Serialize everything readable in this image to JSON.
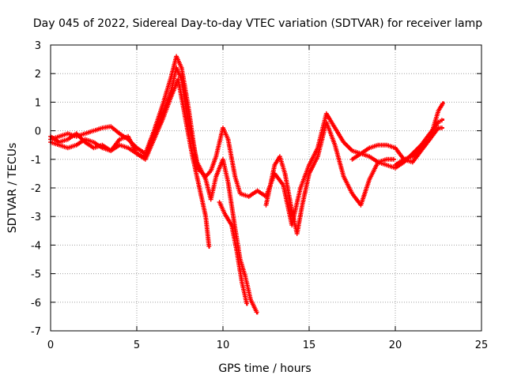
{
  "chart_data": {
    "type": "line",
    "title": "Day 045 of 2022, Sidereal Day-to-day VTEC variation (SDTVAR) for receiver lamp",
    "xlabel": "GPS time / hours",
    "ylabel": "SDTVAR / TECUs",
    "xlim": [
      0,
      25
    ],
    "ylim": [
      -7,
      3
    ],
    "xticks": [
      "0",
      "5",
      "10",
      "15",
      "20",
      "25"
    ],
    "yticks": [
      "3",
      "2",
      "1",
      "0",
      "-1",
      "-2",
      "-3",
      "-4",
      "-5",
      "-6",
      "-7"
    ],
    "grid": true,
    "marker": "plus",
    "color": "#ff0000",
    "series": [
      {
        "x": [
          0,
          0.5,
          1,
          1.5,
          2,
          2.5,
          3,
          3.5,
          4,
          4.5,
          5,
          5.5,
          6,
          6.5,
          7,
          7.3,
          7.6,
          8,
          8.5,
          9,
          9.3,
          9.6,
          10,
          10.3,
          10.7,
          11,
          11.5,
          12,
          12.5,
          13,
          13.5,
          14,
          14.5,
          15,
          15.5,
          16,
          16.5,
          17,
          17.5,
          18,
          18.5,
          19,
          19.5,
          20,
          20.5,
          21,
          21.5,
          22,
          22.5,
          22.8
        ],
        "y": [
          -0.3,
          -0.2,
          -0.1,
          -0.2,
          -0.1,
          0,
          0.1,
          0.15,
          -0.1,
          -0.3,
          -0.6,
          -0.8,
          0,
          0.9,
          1.9,
          2.6,
          2.2,
          0.8,
          -1.3,
          -1.6,
          -1.4,
          -0.9,
          0.1,
          -0.3,
          -1.6,
          -2.2,
          -2.3,
          -2.1,
          -2.3,
          -1.5,
          -1.9,
          -3.3,
          -2.0,
          -1.2,
          -0.6,
          0.6,
          0.1,
          -0.4,
          -0.7,
          -0.8,
          -0.9,
          -1.1,
          -1.2,
          -1.3,
          -1.1,
          -0.8,
          -0.5,
          -0.1,
          0.3,
          0.4
        ]
      },
      {
        "x": [
          0,
          0.5,
          1,
          1.5,
          2,
          2.5,
          3,
          3.5,
          4,
          4.5,
          5,
          5.5,
          6,
          6.5,
          7,
          7.3,
          7.6,
          8,
          8.5,
          9,
          9.3,
          9.6,
          10,
          10.3,
          10.7,
          11,
          11.3,
          11.6,
          12
        ],
        "y": [
          -0.2,
          -0.4,
          -0.3,
          -0.1,
          -0.4,
          -0.6,
          -0.5,
          -0.7,
          -0.3,
          -0.2,
          -0.8,
          -0.9,
          -0.1,
          0.6,
          1.4,
          2.2,
          1.8,
          0.3,
          -1.1,
          -1.7,
          -2.4,
          -1.6,
          -1.0,
          -1.8,
          -3.4,
          -4.5,
          -5.1,
          -5.9,
          -6.4
        ]
      },
      {
        "x": [
          0,
          0.5,
          1,
          1.5,
          2,
          2.5,
          3,
          3.5,
          4,
          4.5,
          5,
          5.5,
          6,
          6.5,
          7,
          7.4,
          7.8,
          8.2,
          8.6,
          9,
          9.2
        ],
        "y": [
          -0.4,
          -0.5,
          -0.6,
          -0.5,
          -0.3,
          -0.4,
          -0.6,
          -0.7,
          -0.5,
          -0.6,
          -0.8,
          -1.0,
          -0.3,
          0.4,
          1.2,
          1.8,
          0.5,
          -0.8,
          -1.9,
          -3.0,
          -4.1
        ]
      },
      {
        "x": [
          9.8,
          10.1,
          10.5,
          10.8,
          11.1,
          11.4
        ],
        "y": [
          -2.5,
          -2.9,
          -3.3,
          -4.2,
          -5.3,
          -6.1
        ]
      },
      {
        "x": [
          12.5,
          13,
          13.3,
          13.6,
          14,
          14.3,
          14.6,
          15,
          15.5,
          16,
          16.5,
          17,
          17.5,
          18,
          18.5,
          19,
          19.5,
          20
        ],
        "y": [
          -2.6,
          -1.2,
          -0.9,
          -1.5,
          -2.8,
          -3.6,
          -2.6,
          -1.5,
          -0.9,
          0.3,
          -0.5,
          -1.6,
          -2.2,
          -2.6,
          -1.7,
          -1.1,
          -1.0,
          -1.0
        ]
      },
      {
        "x": [
          17.5,
          18,
          18.5,
          19,
          19.5,
          20,
          20.5,
          21,
          21.5,
          22,
          22.5,
          22.8
        ],
        "y": [
          -1.0,
          -0.8,
          -0.6,
          -0.5,
          -0.5,
          -0.6,
          -1.0,
          -1.1,
          -0.7,
          -0.3,
          0.1,
          0.1
        ]
      },
      {
        "x": [
          20,
          20.5,
          21,
          21.5,
          22,
          22.5,
          22.8
        ],
        "y": [
          -1.2,
          -1.0,
          -0.9,
          -0.6,
          -0.3,
          0.7,
          1.0
        ]
      }
    ]
  }
}
